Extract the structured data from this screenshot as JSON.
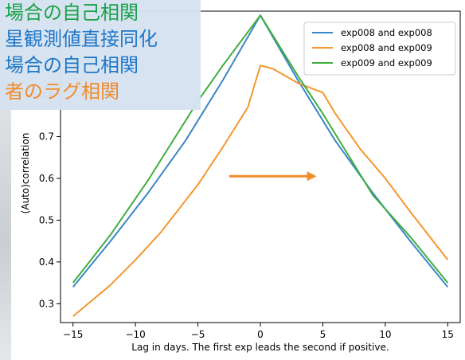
{
  "overlay": {
    "lines": [
      {
        "text": "場合の自己相関",
        "color": "#1aa24a"
      },
      {
        "text": "星観測値直接同化",
        "color": "#1f78c8"
      },
      {
        "text": "場合の自己相関",
        "color": "#1f78c8"
      },
      {
        "text": "者のラグ相関",
        "color": "#f08c2a"
      }
    ]
  },
  "chart_data": {
    "type": "line",
    "xlabel": "Lag in days. The first exp leads the second if positive.",
    "ylabel": "(Auto)correlation",
    "xlim": [
      -16,
      16
    ],
    "ylim": [
      0.255,
      1.0
    ],
    "xticks": [
      -15,
      -10,
      -5,
      0,
      5,
      10,
      15
    ],
    "xtick_labels": [
      "−15",
      "−10",
      "−5",
      "0",
      "5",
      "10",
      "15"
    ],
    "yticks": [
      0.3,
      0.4,
      0.5,
      0.6,
      0.7,
      0.8
    ],
    "ytick_labels": [
      "0.3",
      "0.4",
      "0.5",
      "0.6",
      "0.7",
      "0.8"
    ],
    "legend_position": "top-right",
    "grid": false,
    "series": [
      {
        "name": "exp008 and exp008",
        "color": "#3b86c6",
        "x": [
          -15,
          -12,
          -9,
          -6,
          -3,
          0,
          3,
          6,
          9,
          12,
          15
        ],
        "y": [
          0.34,
          0.45,
          0.565,
          0.69,
          0.835,
          0.99,
          0.835,
          0.69,
          0.565,
          0.45,
          0.34
        ]
      },
      {
        "name": "exp008 and exp009",
        "color": "#f5962f",
        "x": [
          -15,
          -12,
          -10,
          -8,
          -5,
          -3,
          -1,
          0,
          1,
          2,
          3,
          5,
          6,
          8,
          10,
          12,
          15
        ],
        "y": [
          0.27,
          0.345,
          0.405,
          0.47,
          0.585,
          0.675,
          0.77,
          0.87,
          0.862,
          0.845,
          0.828,
          0.805,
          0.755,
          0.67,
          0.6,
          0.52,
          0.405
        ]
      },
      {
        "name": "exp009 and exp009",
        "color": "#3fae3f",
        "x": [
          -15,
          -12,
          -9,
          -5,
          -3,
          0,
          3,
          5,
          9,
          12,
          15
        ],
        "y": [
          0.35,
          0.465,
          0.595,
          0.785,
          0.87,
          0.99,
          0.845,
          0.755,
          0.56,
          0.46,
          0.35
        ]
      }
    ],
    "annotation": {
      "type": "arrow",
      "color": "#f08c2a",
      "x_from": -2.5,
      "x_to": 4.5,
      "y": 0.605
    }
  }
}
